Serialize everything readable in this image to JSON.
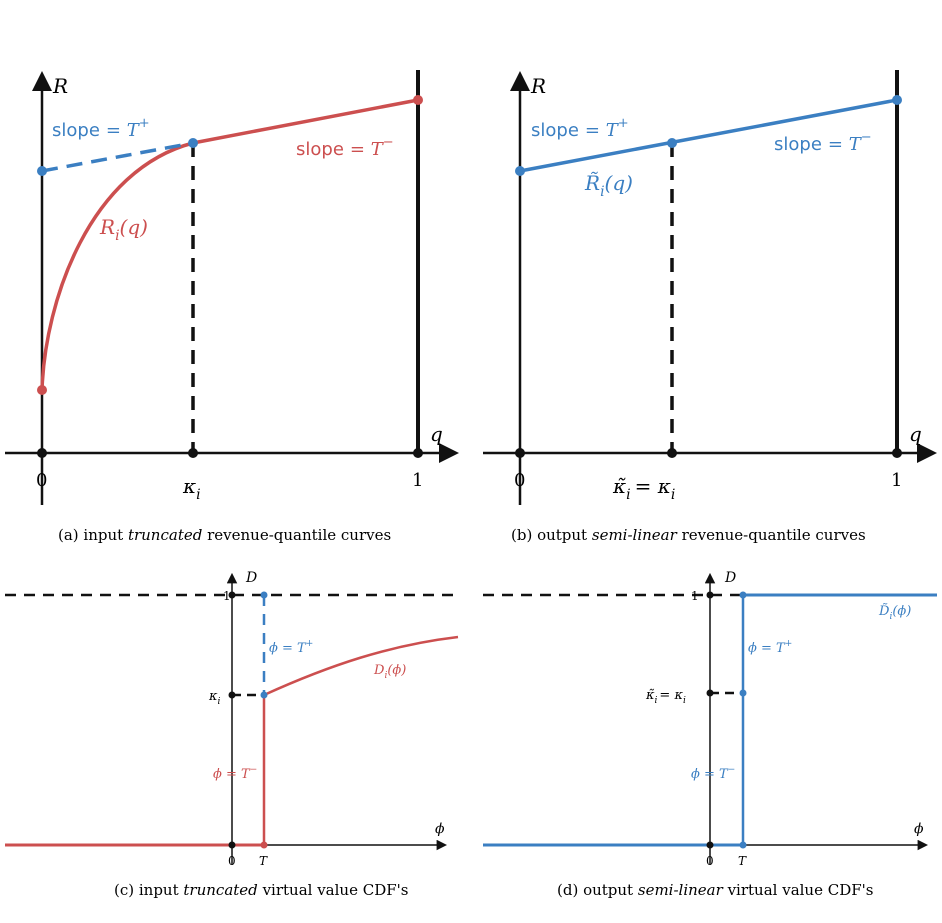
{
  "colors": {
    "red": "#cc4f4f",
    "blue": "#3b7fc2",
    "black": "#111111"
  },
  "panel_a": {
    "caption_prefix": "(a)  input",
    "caption_em": "truncated",
    "caption_suffix": "revenue-quantile curves",
    "y_axis": "R",
    "x_axis": "q",
    "tick_0": "0",
    "tick_kappa": "κ",
    "tick_kappa_sub": "i",
    "tick_1": "1",
    "slope_plus": "slope",
    "slope_plus_eq": "= T",
    "slope_plus_sup": "+",
    "slope_minus": "slope",
    "slope_minus_eq": "= T",
    "slope_minus_sup": "−",
    "curve_label": "R",
    "curve_label_sub": "i",
    "curve_label_arg": "(q)"
  },
  "panel_b": {
    "caption_prefix": "(b)  output",
    "caption_em": "semi-linear",
    "caption_suffix": "revenue-quantile curves",
    "y_axis": "R",
    "x_axis": "q",
    "tick_0": "0",
    "tick_kappa": "κ̃",
    "tick_kappa_sub": "i",
    "tick_kappa_eq": "= κ",
    "tick_kappa_eq_sub": "i",
    "tick_1": "1",
    "slope_plus": "slope",
    "slope_plus_eq": "= T",
    "slope_plus_sup": "+",
    "slope_minus": "slope",
    "slope_minus_eq": "= T",
    "slope_minus_sup": "−",
    "curve_label": "R̃",
    "curve_label_sub": "i",
    "curve_label_arg": "(q)"
  },
  "panel_c": {
    "caption_prefix": "(c)  input",
    "caption_em": "truncated",
    "caption_suffix": "virtual value CDF's",
    "y_axis": "D",
    "x_axis": "ϕ",
    "tick_1": "1",
    "tick_kappa": "κ",
    "tick_kappa_sub": "i",
    "tick_0": "0",
    "tick_T": "T",
    "phi_plus": "ϕ = T",
    "phi_plus_sup": "+",
    "phi_minus": "ϕ = T",
    "phi_minus_sup": "−",
    "curve_label": "D",
    "curve_label_sub": "i",
    "curve_label_arg": "(ϕ)"
  },
  "panel_d": {
    "caption_prefix": "(d)  output",
    "caption_em": "semi-linear",
    "caption_suffix": "virtual value CDF's",
    "y_axis": "D",
    "x_axis": "ϕ",
    "tick_1": "1",
    "tick_kappa": "κ̃",
    "tick_kappa_sub": "i",
    "tick_kappa_eq": "= κ",
    "tick_kappa_eq_sub": "i",
    "tick_0": "0",
    "tick_T": "T",
    "phi_plus": "ϕ = T",
    "phi_plus_sup": "+",
    "phi_minus": "ϕ = T",
    "phi_minus_sup": "−",
    "curve_label": "D̃",
    "curve_label_sub": "i",
    "curve_label_arg": "(ϕ)"
  }
}
